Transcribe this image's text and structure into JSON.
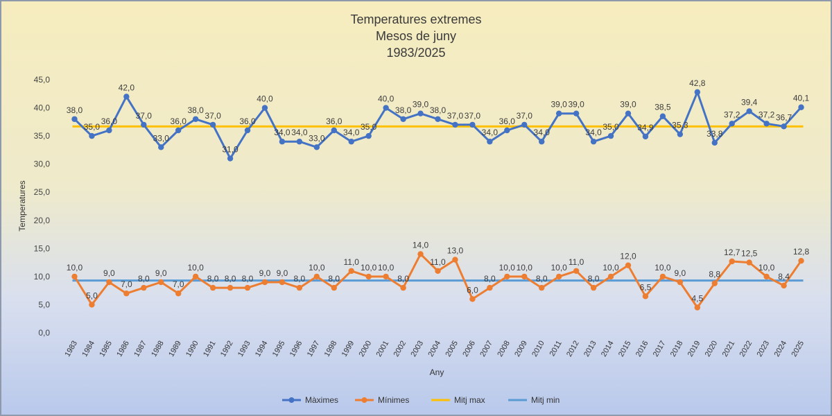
{
  "chart_data": {
    "type": "line",
    "title": [
      "Temperatures extremes",
      "Mesos de juny",
      "1983/2025"
    ],
    "xlabel": "Any",
    "ylabel": "Temperatures",
    "ylim": [
      0,
      45
    ],
    "ytick_step": 5,
    "grid": false,
    "legend_position": "bottom",
    "categories": [
      "1983",
      "1984",
      "1985",
      "1986",
      "1987",
      "1988",
      "1989",
      "1990",
      "1991",
      "1992",
      "1993",
      "1994",
      "1995",
      "1996",
      "1997",
      "1998",
      "1999",
      "2000",
      "2001",
      "2002",
      "2003",
      "2004",
      "2005",
      "2006",
      "2007",
      "2008",
      "2009",
      "2010",
      "2011",
      "2012",
      "2013",
      "2014",
      "2015",
      "2016",
      "2017",
      "2018",
      "2019",
      "2020",
      "2021",
      "2022",
      "2023",
      "2024",
      "2025"
    ],
    "series": [
      {
        "name": "Màximes",
        "color": "#4472c4",
        "values": [
          38.0,
          35.0,
          36.0,
          42.0,
          37.0,
          33.0,
          36.0,
          38.0,
          37.0,
          31.0,
          36.0,
          40.0,
          34.0,
          34.0,
          33.0,
          36.0,
          34.0,
          35.0,
          40.0,
          38.0,
          39.0,
          38.0,
          37.0,
          37.0,
          34.0,
          36.0,
          37.0,
          34.0,
          39.0,
          39.0,
          34.0,
          35.0,
          39.0,
          34.9,
          38.5,
          35.3,
          42.8,
          33.8,
          37.2,
          39.4,
          37.2,
          36.7,
          40.1
        ],
        "labels": [
          "38,0",
          "35,0",
          "36,0",
          "42,0",
          "37,0",
          "33,0",
          "36,0",
          "38,0",
          "37,0",
          "31,0",
          "36,0",
          "40,0",
          "34,0",
          "34,0",
          "33,0",
          "36,0",
          "34,0",
          "35,0",
          "40,0",
          "38,0",
          "39,0",
          "38,0",
          "37,0",
          "37,0",
          "34,0",
          "36,0",
          "37,0",
          "34,0",
          "39,0",
          "39,0",
          "34,0",
          "35,0",
          "39,0",
          "34,9",
          "38,5",
          "35,3",
          "42,8",
          "33,8",
          "37,2",
          "39,4",
          "37,2",
          "36,7",
          "40,1"
        ]
      },
      {
        "name": "Mínimes",
        "color": "#ed7d31",
        "values": [
          10.0,
          5.0,
          9.0,
          7.0,
          8.0,
          9.0,
          7.0,
          10.0,
          8.0,
          8.0,
          8.0,
          9.0,
          9.0,
          8.0,
          10.0,
          8.0,
          11.0,
          10.0,
          10.0,
          8.0,
          14.0,
          11.0,
          13.0,
          6.0,
          8.0,
          10.0,
          10.0,
          8.0,
          10.0,
          11.0,
          8.0,
          10.0,
          12.0,
          6.5,
          10.0,
          9.0,
          4.5,
          8.8,
          12.7,
          12.5,
          10.0,
          8.4,
          12.8
        ],
        "labels": [
          "10,0",
          "5,0",
          "9,0",
          "7,0",
          "8,0",
          "9,0",
          "7,0",
          "10,0",
          "8,0",
          "8,0",
          "8,0",
          "9,0",
          "9,0",
          "8,0",
          "10,0",
          "8,0",
          "11,0",
          "10,0",
          "10,0",
          "8,0",
          "14,0",
          "11,0",
          "13,0",
          "6,0",
          "8,0",
          "10,0",
          "10,0",
          "8,0",
          "10,0",
          "11,0",
          "8,0",
          "10,0",
          "12,0",
          "6,5",
          "10,0",
          "9,0",
          "4,5",
          "8,8",
          "12,7",
          "12,5",
          "10,0",
          "8,4",
          "12,8"
        ]
      },
      {
        "name": "Mitj max",
        "color": "#ffc000",
        "value": 36.7
      },
      {
        "name": "Mitj min",
        "color": "#5b9bd5",
        "value": 9.3
      }
    ]
  }
}
